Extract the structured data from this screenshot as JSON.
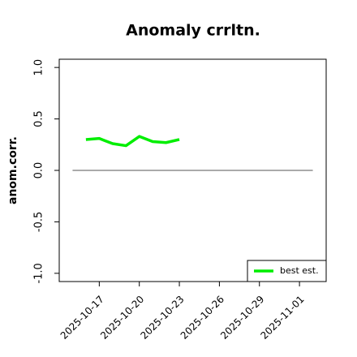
{
  "chart_data": {
    "type": "line",
    "title": "Anomaly crrltn.",
    "y_label": "anom.corr.",
    "x": [
      "2025-10-16",
      "2025-10-17",
      "2025-10-18",
      "2025-10-19",
      "2025-10-20",
      "2025-10-21",
      "2025-10-22",
      "2025-10-23"
    ],
    "series": [
      {
        "name": "best est.",
        "color": "#00ee00",
        "values": [
          0.3,
          0.31,
          0.26,
          0.24,
          0.33,
          0.28,
          0.27,
          0.3
        ]
      }
    ],
    "xlim": [
      "2025-10-14",
      "2025-11-03"
    ],
    "xticks": [
      "2025-10-17",
      "2025-10-20",
      "2025-10-23",
      "2025-10-26",
      "2025-10-29",
      "2025-11-01"
    ],
    "highlight_xtick": "2025-10-23",
    "highlight_color": "#228b22",
    "ylim": [
      -1.08,
      1.08
    ],
    "yticks": [
      {
        "value": -1,
        "label": "-1.0"
      },
      -0.5,
      {
        "value": 0,
        "label": "0.0"
      },
      0.5,
      {
        "value": 1,
        "label": "1.0"
      }
    ],
    "reference_line": {
      "y": 0,
      "x": [
        "2025-10-15",
        "2025-11-02"
      ],
      "color": "#555555"
    },
    "legend": "bottom-right"
  }
}
